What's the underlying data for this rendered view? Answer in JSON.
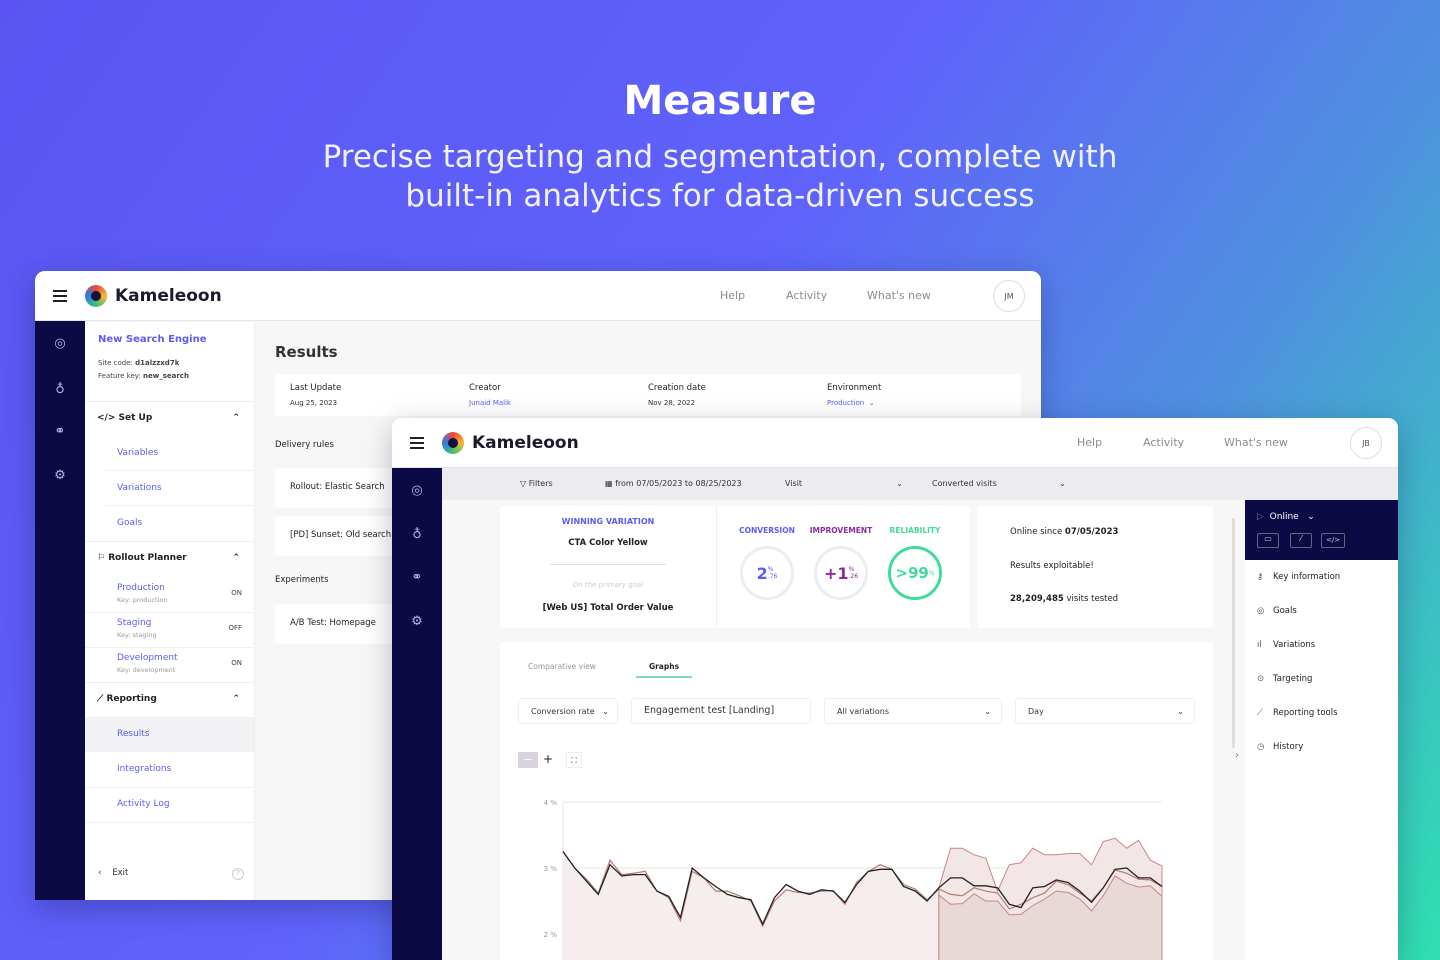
{
  "hero": {
    "title": "Measure",
    "subtitle": "Precise targeting and segmentation, complete with built-in analytics for data-driven success"
  },
  "back": {
    "brand": "Kameleoon",
    "nav": [
      "Help",
      "Activity",
      "What's new"
    ],
    "avatar": "JM",
    "project": {
      "name": "New Search Engine",
      "site_code_label": "Site code:",
      "site_code": "d1alzzxd7k",
      "feature_key_label": "Feature key:",
      "feature_key": "new_search"
    },
    "setup": {
      "label": "Set Up",
      "items": [
        "Variables",
        "Variations",
        "Goals"
      ]
    },
    "rollout": {
      "label": "Rollout Planner",
      "envs": [
        {
          "name": "Production",
          "key": "Key: production",
          "state": "ON"
        },
        {
          "name": "Staging",
          "key": "Key: staging",
          "state": "OFF"
        },
        {
          "name": "Development",
          "key": "Key: development",
          "state": "ON"
        }
      ]
    },
    "reporting": {
      "label": "Reporting",
      "items": [
        "Results",
        "Integrations",
        "Activity Log"
      ]
    },
    "exit": "Exit",
    "help": "?",
    "page_title": "Results",
    "info": [
      {
        "label": "Last Update",
        "value": "Aug 25, 2023"
      },
      {
        "label": "Creator",
        "value": "Junaid Malik"
      },
      {
        "label": "Creation date",
        "value": "Nov 28, 2022"
      },
      {
        "label": "Environment",
        "value": "Production"
      }
    ],
    "delivery_rules": "Delivery rules",
    "rules": [
      "Rollout: Elastic Search",
      "[PD] Sunset: Old search"
    ],
    "experiments": "Experiments",
    "experiment_items": [
      "A/B Test: Homepage"
    ]
  },
  "front": {
    "brand": "Kameleoon",
    "nav": [
      "Help",
      "Activity",
      "What's new"
    ],
    "avatar": "JB",
    "filters": {
      "label": "Filters",
      "date": "from 07/05/2023 to 08/25/2023",
      "visit": "Visit",
      "metric": "Converted visits"
    },
    "winning": {
      "title": "WINNING VARIATION",
      "name": "CTA Color Yellow",
      "goal_hint": "On the primary goal",
      "goal": "[Web US] Total Order Value"
    },
    "kpis": [
      {
        "label": "CONVERSION",
        "value": "2",
        "decimal": ".76",
        "unit": "%",
        "color": "#5b5cf0"
      },
      {
        "label": "IMPROVEMENT",
        "value": "+1",
        "decimal": ".26",
        "unit": "%",
        "color": "#8a2d9e"
      },
      {
        "label": "RELIABILITY",
        "value": ">99",
        "decimal": "",
        "unit": "%",
        "color": "#3fdc9c"
      }
    ],
    "status": {
      "online_since_label": "Online since",
      "online_since": "07/05/2023",
      "exploitable": "Results exploitable!",
      "visits": "28,209,485",
      "visits_label": "visits tested"
    },
    "tabs": [
      "Comparative view",
      "Graphs"
    ],
    "active_tab": "Graphs",
    "selects": [
      "Conversion rate",
      "Engagement test [Landing]",
      "All variations",
      "Day"
    ],
    "panel": {
      "status": "Online",
      "items": [
        "Key information",
        "Goals",
        "Variations",
        "Targeting",
        "Reporting tools",
        "History"
      ]
    }
  },
  "chart_data": {
    "type": "line",
    "ylabel": "",
    "ylim": [
      1.5,
      4
    ],
    "yticks": [
      "4 %",
      "3 %",
      "2 %"
    ],
    "grid": true,
    "series": [
      {
        "role": "variation",
        "color": "#222222",
        "values": [
          3.25,
          3.0,
          2.8,
          2.6,
          3.05,
          2.88,
          2.9,
          2.9,
          2.65,
          2.57,
          2.25,
          3.0,
          2.85,
          2.72,
          2.6,
          2.55,
          2.52,
          2.15,
          2.55,
          2.75,
          2.65,
          2.6,
          2.67,
          2.65,
          2.48,
          2.75,
          2.95,
          2.98,
          2.98,
          2.72,
          2.65,
          2.5,
          2.7,
          2.85,
          2.85,
          2.73,
          2.73,
          2.7,
          2.45,
          2.4,
          2.7,
          2.72,
          2.82,
          2.78,
          2.65,
          2.48,
          2.7,
          2.98,
          3.0,
          2.85,
          2.85,
          2.72
        ]
      },
      {
        "role": "reference",
        "color": "#b87a70",
        "values": [
          3.25,
          3.0,
          2.83,
          2.62,
          3.12,
          2.9,
          2.92,
          2.95,
          2.65,
          2.55,
          2.2,
          2.95,
          2.85,
          2.65,
          2.65,
          2.58,
          2.5,
          2.12,
          2.5,
          2.67,
          2.63,
          2.62,
          2.65,
          2.66,
          2.45,
          2.78,
          2.95,
          3.05,
          2.98,
          2.75,
          2.68,
          2.52,
          2.68,
          2.6,
          2.58,
          2.7,
          2.65,
          2.62,
          2.38,
          2.45,
          2.55,
          2.62,
          2.8,
          2.75,
          2.62,
          2.5,
          2.7,
          2.97,
          2.92,
          2.83,
          2.82,
          2.72
        ]
      },
      {
        "role": "confidence-upper",
        "color": "#b87a70",
        "values": [
          null,
          null,
          null,
          null,
          null,
          null,
          null,
          null,
          null,
          null,
          null,
          null,
          null,
          null,
          null,
          null,
          null,
          null,
          null,
          null,
          null,
          null,
          null,
          null,
          null,
          null,
          null,
          null,
          null,
          null,
          null,
          null,
          2.7,
          3.3,
          3.3,
          3.2,
          3.15,
          2.65,
          3.05,
          3.08,
          3.3,
          3.2,
          3.2,
          3.22,
          3.22,
          3.05,
          3.4,
          3.45,
          3.3,
          3.42,
          3.12,
          3.03
        ]
      }
    ]
  }
}
